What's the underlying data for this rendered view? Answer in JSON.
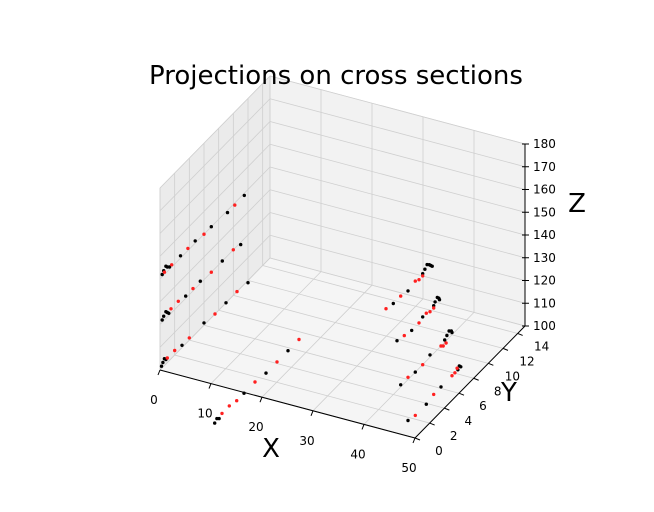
{
  "chart_data": {
    "type": "scatter3d",
    "title": "Projections on cross sections",
    "xlabel": "X",
    "ylabel": "Y",
    "zlabel": "Z",
    "xlim": [
      0,
      50
    ],
    "ylim": [
      0,
      15
    ],
    "zlim": [
      100,
      180
    ],
    "xticks": [
      0,
      10,
      20,
      30,
      40,
      50
    ],
    "yticks": [
      0,
      2,
      4,
      6,
      8,
      10,
      12,
      14
    ],
    "zticks": [
      100,
      110,
      120,
      130,
      140,
      150,
      160,
      170,
      180
    ],
    "grid": true,
    "series": [
      {
        "color": "#000000",
        "points": [
          [
            0,
            0.3,
            141
          ],
          [
            0,
            0.5,
            142
          ],
          [
            0,
            0.8,
            143
          ],
          [
            0,
            1.0,
            142
          ],
          [
            0,
            1.3,
            141
          ],
          [
            0,
            2.8,
            141
          ],
          [
            0,
            4.8,
            141
          ],
          [
            0,
            7.0,
            140
          ],
          [
            0,
            9.2,
            139
          ],
          [
            0,
            11.5,
            139
          ],
          [
            0,
            0.3,
            121
          ],
          [
            0,
            0.5,
            122
          ],
          [
            0,
            0.8,
            123
          ],
          [
            0,
            1.0,
            122
          ],
          [
            0,
            1.2,
            121
          ],
          [
            0,
            3.5,
            121
          ],
          [
            0,
            5.5,
            121
          ],
          [
            0,
            8.5,
            120
          ],
          [
            0,
            11.0,
            119
          ],
          [
            0,
            0.2,
            101
          ],
          [
            0,
            0.4,
            102
          ],
          [
            0,
            0.6,
            103
          ],
          [
            0,
            0.8,
            102
          ],
          [
            0,
            3.0,
            101
          ],
          [
            0,
            6.0,
            101
          ],
          [
            0,
            9.0,
            100
          ],
          [
            0,
            12.0,
            99
          ],
          [
            10,
            0.5,
            81
          ],
          [
            10,
            0.8,
            82
          ],
          [
            10,
            1.1,
            81
          ],
          [
            10,
            4.5,
            81
          ],
          [
            10,
            7.5,
            80
          ],
          [
            10,
            10.5,
            80
          ],
          [
            40,
            8.0,
            140
          ],
          [
            40,
            8.3,
            141
          ],
          [
            40,
            8.6,
            142
          ],
          [
            40,
            8.9,
            141
          ],
          [
            40,
            9.1,
            140
          ],
          [
            40,
            9.3,
            139
          ],
          [
            40,
            4.0,
            140
          ],
          [
            40,
            6.0,
            139
          ],
          [
            40,
            9.5,
            121
          ],
          [
            40,
            9.7,
            122
          ],
          [
            40,
            10.0,
            123
          ],
          [
            40,
            10.2,
            122
          ],
          [
            40,
            10.3,
            121
          ],
          [
            40,
            4.5,
            122
          ],
          [
            40,
            6.5,
            120
          ],
          [
            40,
            8.0,
            121
          ],
          [
            40,
            11.0,
            101
          ],
          [
            40,
            11.3,
            102
          ],
          [
            40,
            11.6,
            103
          ],
          [
            40,
            11.9,
            102
          ],
          [
            40,
            12.0,
            101
          ],
          [
            40,
            5.0,
            101
          ],
          [
            40,
            7.0,
            100
          ],
          [
            40,
            9.0,
            101
          ],
          [
            40,
            12.8,
            82
          ],
          [
            40,
            13.0,
            83
          ],
          [
            40,
            13.2,
            82
          ],
          [
            40,
            6.0,
            82
          ],
          [
            40,
            8.5,
            81
          ],
          [
            40,
            10.5,
            82
          ]
        ]
      },
      {
        "color": "#ff2020",
        "points": [
          [
            0,
            0.6,
            141
          ],
          [
            0,
            1.6,
            141
          ],
          [
            0,
            3.8,
            141
          ],
          [
            0,
            6.0,
            140
          ],
          [
            0,
            10.2,
            139
          ],
          [
            0,
            1.5,
            122
          ],
          [
            0,
            2.5,
            122
          ],
          [
            0,
            4.5,
            121
          ],
          [
            0,
            7.0,
            120
          ],
          [
            0,
            10.0,
            120
          ],
          [
            0,
            1.0,
            102
          ],
          [
            0,
            2.0,
            102
          ],
          [
            0,
            4.0,
            101
          ],
          [
            0,
            7.5,
            100
          ],
          [
            0,
            10.5,
            100
          ],
          [
            10,
            1.5,
            82
          ],
          [
            10,
            2.5,
            82
          ],
          [
            10,
            3.5,
            81
          ],
          [
            10,
            6.0,
            81
          ],
          [
            10,
            9.0,
            80
          ],
          [
            10,
            12.0,
            80
          ],
          [
            40,
            7.0,
            140
          ],
          [
            40,
            7.5,
            139
          ],
          [
            40,
            8.0,
            139
          ],
          [
            40,
            5.0,
            140
          ],
          [
            40,
            3.0,
            141
          ],
          [
            40,
            8.5,
            121
          ],
          [
            40,
            9.0,
            120
          ],
          [
            40,
            9.5,
            120
          ],
          [
            40,
            7.5,
            120
          ],
          [
            40,
            5.5,
            121
          ],
          [
            40,
            10.5,
            100
          ],
          [
            40,
            10.8,
            99
          ],
          [
            40,
            11.2,
            99
          ],
          [
            40,
            8.0,
            100
          ],
          [
            40,
            6.0,
            101
          ],
          [
            40,
            12.0,
            82
          ],
          [
            40,
            12.4,
            82
          ],
          [
            40,
            12.7,
            83
          ],
          [
            40,
            9.5,
            82
          ],
          [
            40,
            7.0,
            81
          ]
        ]
      }
    ]
  }
}
